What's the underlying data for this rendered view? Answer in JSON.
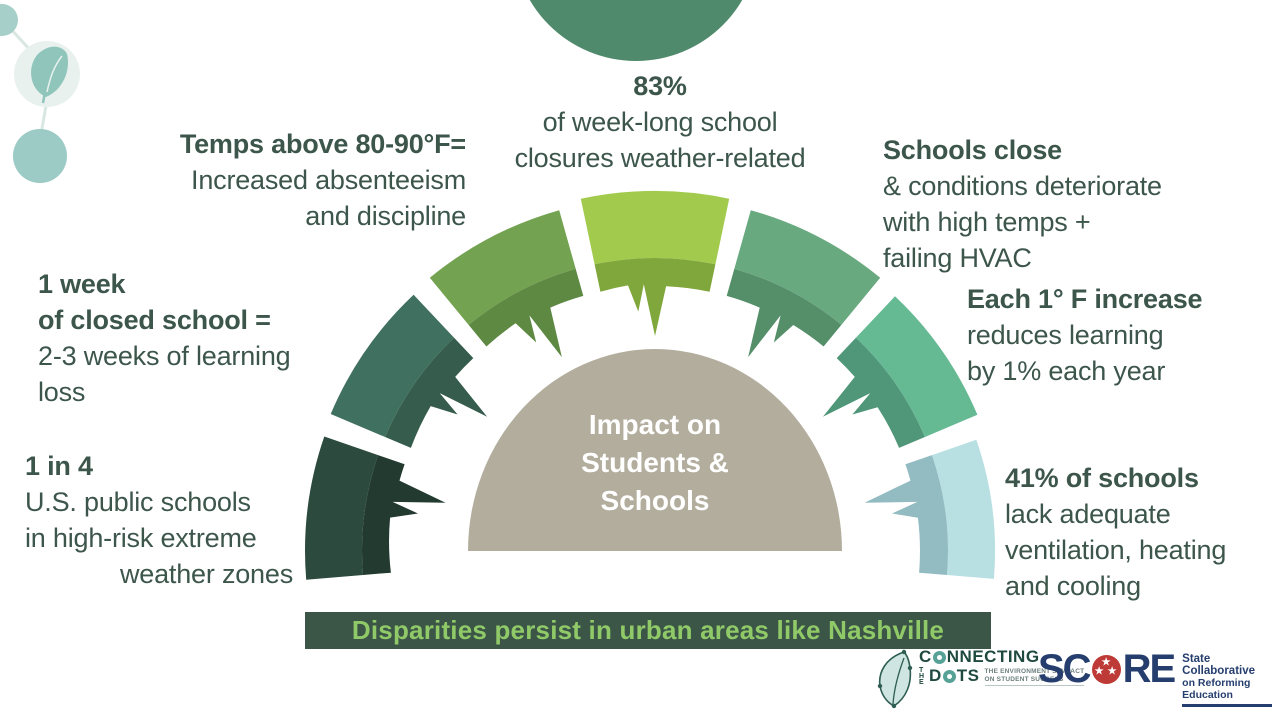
{
  "figure": {
    "colors": {
      "canvas_bg": "#ffffff",
      "text": "#3d564c",
      "center_fill": "#b2ad9d",
      "center_text": "#ffffff",
      "top_circle": "#4f8a6d",
      "banner_bg": "#3b5547",
      "banner_fg": "#90c968"
    },
    "center_title_lines": [
      "Impact on",
      "Students &",
      "Schools"
    ],
    "banner_text": "Disparities persist in urban areas like Nashville",
    "wedges": [
      {
        "name": "one-in-four",
        "angle": 172.8,
        "main": "#2c4a3d",
        "band": "#223a30"
      },
      {
        "name": "one-week",
        "angle": 145.2,
        "main": "#40705f",
        "band": "#355c4d"
      },
      {
        "name": "temps",
        "angle": 117.6,
        "main": "#73a250",
        "band": "#5e8943"
      },
      {
        "name": "closures",
        "angle": 90,
        "main": "#a2cb4e",
        "band": "#80a73b"
      },
      {
        "name": "schools-close",
        "angle": 62.4,
        "main": "#69a97f",
        "band": "#548f6a"
      },
      {
        "name": "degree",
        "angle": 34.8,
        "main": "#65ba94",
        "band": "#4f9778"
      },
      {
        "name": "forty-one",
        "angle": 7.2,
        "main": "#b8dfe2",
        "band": "#92bbc2"
      }
    ],
    "callouts": {
      "temps": {
        "bold": "Temps above 80-90°F=",
        "line1": "Increased absenteeism",
        "line2": "and discipline"
      },
      "closures": {
        "bold": "83%",
        "line1": "of week-long school",
        "line2": "closures weather-related"
      },
      "schools_close": {
        "bold": "Schools close",
        "line1": "& conditions deteriorate",
        "line2": "with high temps +",
        "line3": "failing HVAC"
      },
      "one_week": {
        "bold1": "1 week",
        "bold2": "of closed school =",
        "line1": "2-3 weeks of learning",
        "line2": "loss"
      },
      "degree": {
        "bold": "Each 1° F increase",
        "line1": "reduces learning",
        "line2": "by 1% each year"
      },
      "one_in_four": {
        "bold": "1 in 4",
        "line1": "U.S. public schools",
        "line2": "in high-risk extreme",
        "line3": "weather zones"
      },
      "forty_one": {
        "bold": "41% of schools",
        "line1": "lack adequate",
        "line2": "ventilation, heating",
        "line3": "and cooling"
      }
    }
  },
  "decoration": {
    "colors": {
      "deco_circle_small": "#a7cfc9",
      "deco_circle_pale": "#e9f1ef",
      "deco_leaf": "#8fc5bb",
      "deco_circle_solid": "#9bcbc4",
      "deco_line": "#d9e7e3"
    }
  },
  "logos": {
    "colors": {
      "ctd_green": "#1f4a3f",
      "ctd_teal": "#56a297",
      "ctd_gray": "#6b7f7c",
      "score_navy": "#253e6e",
      "score_red": "#be3a36"
    },
    "connecting": {
      "part1": "C",
      "part2": "NNECTING",
      "the": "THE",
      "d": "D",
      "ts": "TS",
      "tag1": "THE ENVIRONMENT'S IMPACT",
      "tag2": "ON STUDENT SUCCESS"
    },
    "score": {
      "sc": "SC",
      "re": "RE",
      "star": "★",
      "tag1": "State Collaborative",
      "tag2": "on Reforming Education"
    }
  }
}
